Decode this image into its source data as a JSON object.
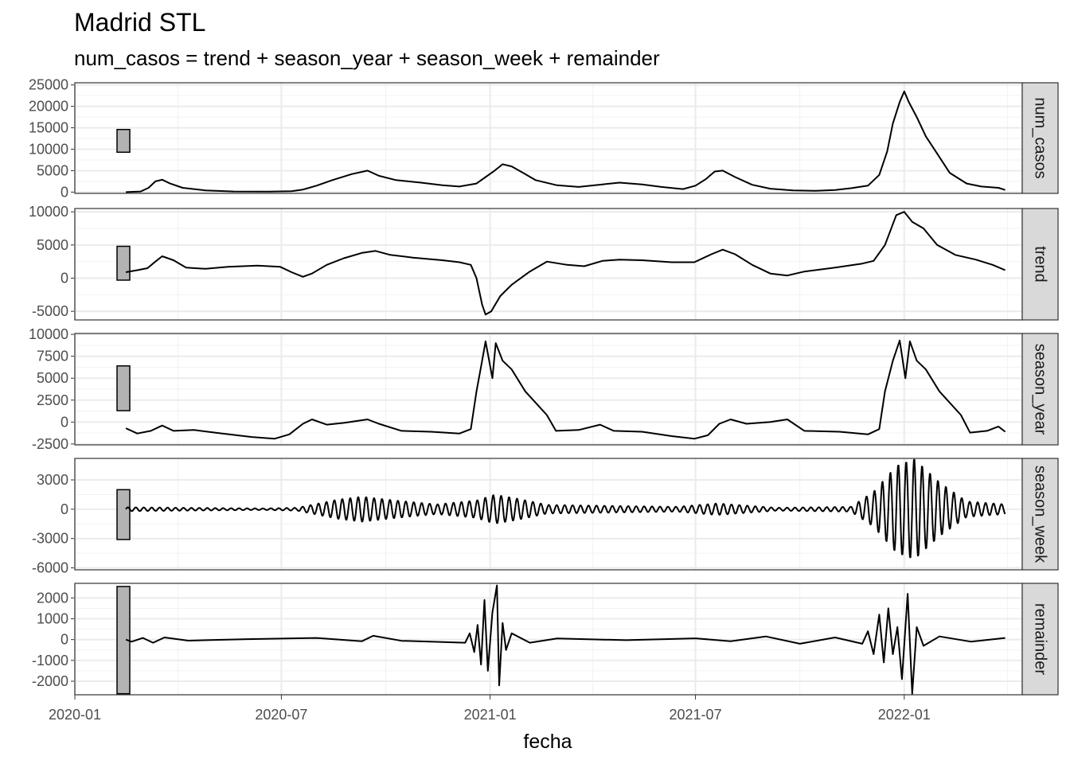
{
  "title": "Madrid STL",
  "subtitle": "num_casos = trend + season_year + season_week + remainder",
  "chart_data": {
    "type": "line",
    "facet_layout": "vertical",
    "xlabel": "fecha",
    "x_range": [
      "2020-01-01",
      "2022-04-15"
    ],
    "x_ticks": [
      "2020-01",
      "2020-07",
      "2021-01",
      "2021-07",
      "2022-01"
    ],
    "grid": true,
    "panels": [
      {
        "name": "num_casos",
        "ylim": [
          -300,
          25500
        ],
        "y_ticks": [
          0,
          5000,
          10000,
          15000,
          20000,
          25000
        ],
        "scale_bar": [
          9300,
          14600
        ],
        "points": [
          [
            "2020-02-15",
            0
          ],
          [
            "2020-02-28",
            150
          ],
          [
            "2020-03-06",
            1000
          ],
          [
            "2020-03-12",
            2500
          ],
          [
            "2020-03-18",
            2900
          ],
          [
            "2020-03-25",
            2000
          ],
          [
            "2020-04-05",
            1000
          ],
          [
            "2020-04-25",
            400
          ],
          [
            "2020-05-20",
            150
          ],
          [
            "2020-06-20",
            100
          ],
          [
            "2020-07-10",
            200
          ],
          [
            "2020-07-20",
            600
          ],
          [
            "2020-08-01",
            1500
          ],
          [
            "2020-08-15",
            2800
          ],
          [
            "2020-09-01",
            4200
          ],
          [
            "2020-09-15",
            5000
          ],
          [
            "2020-09-25",
            3800
          ],
          [
            "2020-10-10",
            2800
          ],
          [
            "2020-11-01",
            2200
          ],
          [
            "2020-11-20",
            1600
          ],
          [
            "2020-12-05",
            1300
          ],
          [
            "2020-12-20",
            2000
          ],
          [
            "2020-12-28",
            3500
          ],
          [
            "2021-01-05",
            5000
          ],
          [
            "2021-01-12",
            6500
          ],
          [
            "2021-01-20",
            6000
          ],
          [
            "2021-01-30",
            4500
          ],
          [
            "2021-02-10",
            2800
          ],
          [
            "2021-03-01",
            1600
          ],
          [
            "2021-03-20",
            1200
          ],
          [
            "2021-04-10",
            1800
          ],
          [
            "2021-04-25",
            2200
          ],
          [
            "2021-05-15",
            1800
          ],
          [
            "2021-06-01",
            1200
          ],
          [
            "2021-06-20",
            700
          ],
          [
            "2021-07-01",
            1500
          ],
          [
            "2021-07-10",
            3000
          ],
          [
            "2021-07-18",
            4800
          ],
          [
            "2021-07-25",
            5000
          ],
          [
            "2021-08-05",
            3500
          ],
          [
            "2021-08-20",
            1700
          ],
          [
            "2021-09-05",
            800
          ],
          [
            "2021-09-25",
            400
          ],
          [
            "2021-10-15",
            300
          ],
          [
            "2021-11-01",
            500
          ],
          [
            "2021-11-15",
            900
          ],
          [
            "2021-11-30",
            1500
          ],
          [
            "2021-12-10",
            4000
          ],
          [
            "2021-12-17",
            9500
          ],
          [
            "2021-12-22",
            16000
          ],
          [
            "2021-12-28",
            21000
          ],
          [
            "2022-01-01",
            23500
          ],
          [
            "2022-01-05",
            21000
          ],
          [
            "2022-01-12",
            17500
          ],
          [
            "2022-01-20",
            13000
          ],
          [
            "2022-01-30",
            9000
          ],
          [
            "2022-02-10",
            4500
          ],
          [
            "2022-02-25",
            2000
          ],
          [
            "2022-03-10",
            1300
          ],
          [
            "2022-03-25",
            1000
          ],
          [
            "2022-03-31",
            500
          ]
        ]
      },
      {
        "name": "trend",
        "ylim": [
          -6300,
          10500
        ],
        "y_ticks": [
          -5000,
          0,
          5000,
          10000
        ],
        "scale_bar": [
          -300,
          4800
        ],
        "points": [
          [
            "2020-02-15",
            900
          ],
          [
            "2020-02-25",
            1200
          ],
          [
            "2020-03-05",
            1500
          ],
          [
            "2020-03-12",
            2500
          ],
          [
            "2020-03-18",
            3300
          ],
          [
            "2020-03-28",
            2700
          ],
          [
            "2020-04-08",
            1600
          ],
          [
            "2020-04-25",
            1400
          ],
          [
            "2020-05-15",
            1700
          ],
          [
            "2020-06-10",
            1900
          ],
          [
            "2020-06-30",
            1700
          ],
          [
            "2020-07-10",
            900
          ],
          [
            "2020-07-20",
            200
          ],
          [
            "2020-07-28",
            700
          ],
          [
            "2020-08-10",
            2000
          ],
          [
            "2020-08-25",
            3000
          ],
          [
            "2020-09-10",
            3800
          ],
          [
            "2020-09-22",
            4100
          ],
          [
            "2020-10-05",
            3500
          ],
          [
            "2020-10-25",
            3100
          ],
          [
            "2020-11-20",
            2700
          ],
          [
            "2020-12-05",
            2400
          ],
          [
            "2020-12-15",
            2000
          ],
          [
            "2020-12-20",
            0
          ],
          [
            "2020-12-25",
            -4000
          ],
          [
            "2020-12-28",
            -5500
          ],
          [
            "2021-01-02",
            -5000
          ],
          [
            "2021-01-10",
            -2700
          ],
          [
            "2021-01-20",
            -1000
          ],
          [
            "2021-02-05",
            1000
          ],
          [
            "2021-02-20",
            2500
          ],
          [
            "2021-03-10",
            2000
          ],
          [
            "2021-03-25",
            1800
          ],
          [
            "2021-04-10",
            2600
          ],
          [
            "2021-04-25",
            2800
          ],
          [
            "2021-05-15",
            2700
          ],
          [
            "2021-06-10",
            2400
          ],
          [
            "2021-06-30",
            2400
          ],
          [
            "2021-07-15",
            3600
          ],
          [
            "2021-07-25",
            4300
          ],
          [
            "2021-08-05",
            3600
          ],
          [
            "2021-08-20",
            2000
          ],
          [
            "2021-09-05",
            700
          ],
          [
            "2021-09-20",
            400
          ],
          [
            "2021-10-05",
            1000
          ],
          [
            "2021-11-01",
            1600
          ],
          [
            "2021-11-25",
            2200
          ],
          [
            "2021-12-05",
            2600
          ],
          [
            "2021-12-15",
            5000
          ],
          [
            "2021-12-25",
            9500
          ],
          [
            "2022-01-01",
            10000
          ],
          [
            "2022-01-08",
            8500
          ],
          [
            "2022-01-18",
            7500
          ],
          [
            "2022-01-30",
            5000
          ],
          [
            "2022-02-15",
            3500
          ],
          [
            "2022-03-05",
            2800
          ],
          [
            "2022-03-20",
            2000
          ],
          [
            "2022-03-31",
            1200
          ]
        ]
      },
      {
        "name": "season_year",
        "ylim": [
          -2600,
          10100
        ],
        "y_ticks": [
          -2500,
          0,
          2500,
          5000,
          7500,
          10000
        ],
        "scale_bar": [
          1300,
          6400
        ],
        "points": [
          [
            "2020-02-15",
            -700
          ],
          [
            "2020-02-25",
            -1300
          ],
          [
            "2020-03-08",
            -1000
          ],
          [
            "2020-03-18",
            -400
          ],
          [
            "2020-03-28",
            -1000
          ],
          [
            "2020-04-15",
            -900
          ],
          [
            "2020-05-10",
            -1300
          ],
          [
            "2020-06-05",
            -1700
          ],
          [
            "2020-06-25",
            -1900
          ],
          [
            "2020-07-08",
            -1400
          ],
          [
            "2020-07-20",
            -200
          ],
          [
            "2020-07-28",
            300
          ],
          [
            "2020-08-10",
            -300
          ],
          [
            "2020-08-25",
            -100
          ],
          [
            "2020-09-15",
            300
          ],
          [
            "2020-09-25",
            -200
          ],
          [
            "2020-10-15",
            -1000
          ],
          [
            "2020-11-10",
            -1100
          ],
          [
            "2020-12-05",
            -1300
          ],
          [
            "2020-12-15",
            -800
          ],
          [
            "2020-12-20",
            3500
          ],
          [
            "2020-12-25",
            7000
          ],
          [
            "2020-12-28",
            9200
          ],
          [
            "2021-01-03",
            5000
          ],
          [
            "2021-01-06",
            9000
          ],
          [
            "2021-01-12",
            7000
          ],
          [
            "2021-01-20",
            6000
          ],
          [
            "2021-02-01",
            3500
          ],
          [
            "2021-02-20",
            800
          ],
          [
            "2021-02-28",
            -1000
          ],
          [
            "2021-03-20",
            -900
          ],
          [
            "2021-04-08",
            -300
          ],
          [
            "2021-04-20",
            -1000
          ],
          [
            "2021-05-15",
            -1100
          ],
          [
            "2021-06-10",
            -1600
          ],
          [
            "2021-06-30",
            -1900
          ],
          [
            "2021-07-12",
            -1500
          ],
          [
            "2021-07-22",
            -200
          ],
          [
            "2021-08-01",
            300
          ],
          [
            "2021-08-15",
            -200
          ],
          [
            "2021-09-05",
            0
          ],
          [
            "2021-09-20",
            300
          ],
          [
            "2021-10-05",
            -1000
          ],
          [
            "2021-11-05",
            -1100
          ],
          [
            "2021-11-30",
            -1400
          ],
          [
            "2021-12-10",
            -800
          ],
          [
            "2021-12-15",
            3500
          ],
          [
            "2021-12-22",
            7000
          ],
          [
            "2021-12-28",
            9300
          ],
          [
            "2022-01-02",
            5000
          ],
          [
            "2022-01-06",
            9200
          ],
          [
            "2022-01-12",
            7000
          ],
          [
            "2022-01-20",
            6000
          ],
          [
            "2022-02-01",
            3500
          ],
          [
            "2022-02-20",
            800
          ],
          [
            "2022-02-28",
            -1200
          ],
          [
            "2022-03-15",
            -1000
          ],
          [
            "2022-03-25",
            -500
          ],
          [
            "2022-03-31",
            -1100
          ]
        ]
      },
      {
        "name": "season_week",
        "ylim": [
          -6200,
          5200
        ],
        "y_ticks": [
          -6000,
          -3000,
          0,
          3000
        ],
        "scale_bar": [
          -3100,
          2000
        ],
        "period_days": 7,
        "amplitude_envelope": [
          [
            "2020-02-15",
            200
          ],
          [
            "2020-06-15",
            80
          ],
          [
            "2020-07-15",
            150
          ],
          [
            "2020-08-20",
            1000
          ],
          [
            "2020-09-10",
            1300
          ],
          [
            "2020-10-10",
            900
          ],
          [
            "2020-11-15",
            500
          ],
          [
            "2020-12-20",
            900
          ],
          [
            "2021-01-05",
            1500
          ],
          [
            "2021-01-25",
            1100
          ],
          [
            "2021-02-20",
            450
          ],
          [
            "2021-05-15",
            300
          ],
          [
            "2021-06-15",
            250
          ],
          [
            "2021-07-20",
            600
          ],
          [
            "2021-09-10",
            150
          ],
          [
            "2021-11-15",
            250
          ],
          [
            "2021-12-05",
            1800
          ],
          [
            "2021-12-25",
            4500
          ],
          [
            "2022-01-10",
            5200
          ],
          [
            "2022-02-01",
            2800
          ],
          [
            "2022-02-25",
            800
          ],
          [
            "2022-03-31",
            500
          ]
        ]
      },
      {
        "name": "remainder",
        "ylim": [
          -2650,
          2700
        ],
        "y_ticks": [
          -2000,
          -1000,
          0,
          1000,
          2000
        ],
        "scale_bar": [
          -2600,
          2550
        ],
        "points": [
          [
            "2020-02-15",
            0
          ],
          [
            "2020-02-20",
            -100
          ],
          [
            "2020-03-01",
            80
          ],
          [
            "2020-03-10",
            -150
          ],
          [
            "2020-03-20",
            100
          ],
          [
            "2020-04-10",
            -50
          ],
          [
            "2020-06-01",
            20
          ],
          [
            "2020-08-01",
            80
          ],
          [
            "2020-09-10",
            -80
          ],
          [
            "2020-09-20",
            180
          ],
          [
            "2020-10-15",
            -60
          ],
          [
            "2020-12-10",
            -150
          ],
          [
            "2020-12-14",
            300
          ],
          [
            "2020-12-18",
            -600
          ],
          [
            "2020-12-21",
            700
          ],
          [
            "2020-12-24",
            -1200
          ],
          [
            "2020-12-27",
            1900
          ],
          [
            "2020-12-30",
            -1500
          ],
          [
            "2021-01-03",
            1300
          ],
          [
            "2021-01-07",
            2600
          ],
          [
            "2021-01-09",
            -2200
          ],
          [
            "2021-01-12",
            800
          ],
          [
            "2021-01-15",
            -500
          ],
          [
            "2021-01-20",
            300
          ],
          [
            "2021-02-05",
            -150
          ],
          [
            "2021-03-01",
            50
          ],
          [
            "2021-05-01",
            -30
          ],
          [
            "2021-07-01",
            60
          ],
          [
            "2021-08-01",
            -80
          ],
          [
            "2021-09-01",
            150
          ],
          [
            "2021-10-01",
            -200
          ],
          [
            "2021-11-01",
            100
          ],
          [
            "2021-11-25",
            -200
          ],
          [
            "2021-11-30",
            400
          ],
          [
            "2021-12-05",
            -700
          ],
          [
            "2021-12-10",
            1200
          ],
          [
            "2021-12-14",
            -1100
          ],
          [
            "2021-12-18",
            1500
          ],
          [
            "2021-12-22",
            -700
          ],
          [
            "2021-12-26",
            600
          ],
          [
            "2021-12-30",
            -1900
          ],
          [
            "2022-01-04",
            2200
          ],
          [
            "2022-01-08",
            -2600
          ],
          [
            "2022-01-12",
            600
          ],
          [
            "2022-01-18",
            -300
          ],
          [
            "2022-02-01",
            150
          ],
          [
            "2022-03-01",
            -100
          ],
          [
            "2022-03-31",
            80
          ]
        ]
      }
    ]
  }
}
